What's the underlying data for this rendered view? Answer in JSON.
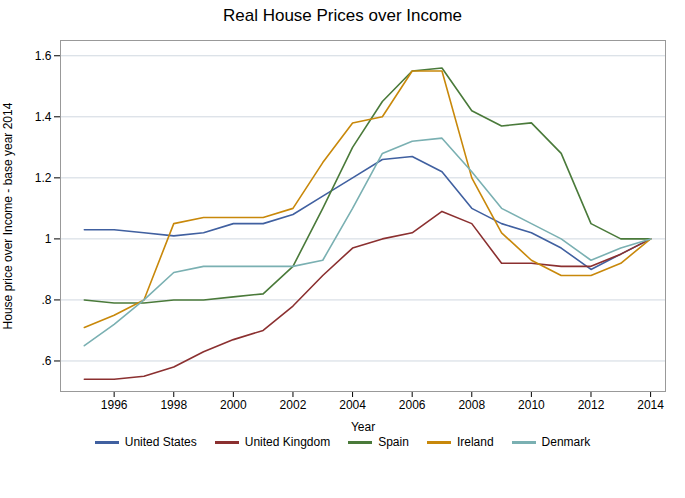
{
  "chart_data": {
    "type": "line",
    "title": "Real House Prices over Income",
    "xlabel": "Year",
    "ylabel": "House price over Income - base year 2014",
    "x": [
      1995,
      1996,
      1997,
      1998,
      1999,
      2000,
      2001,
      2002,
      2003,
      2004,
      2005,
      2006,
      2007,
      2008,
      2009,
      2010,
      2011,
      2012,
      2013,
      2014
    ],
    "series": [
      {
        "name": "United States",
        "color": "#4060a0",
        "values": [
          1.03,
          1.03,
          1.02,
          1.01,
          1.02,
          1.05,
          1.05,
          1.08,
          1.14,
          1.2,
          1.26,
          1.27,
          1.22,
          1.1,
          1.05,
          1.02,
          0.97,
          0.9,
          0.95,
          1.0
        ]
      },
      {
        "name": "United Kingdom",
        "color": "#8b3030",
        "values": [
          0.54,
          0.54,
          0.55,
          0.58,
          0.63,
          0.67,
          0.7,
          0.78,
          0.88,
          0.97,
          1.0,
          1.02,
          1.09,
          1.05,
          0.92,
          0.92,
          0.91,
          0.91,
          0.95,
          1.0
        ]
      },
      {
        "name": "Spain",
        "color": "#4a7a3a",
        "values": [
          0.8,
          0.79,
          0.79,
          0.8,
          0.8,
          0.81,
          0.82,
          0.91,
          1.1,
          1.3,
          1.45,
          1.55,
          1.56,
          1.42,
          1.37,
          1.38,
          1.28,
          1.05,
          1.0,
          1.0
        ]
      },
      {
        "name": "Ireland",
        "color": "#c8880a",
        "values": [
          0.71,
          0.75,
          0.8,
          1.05,
          1.07,
          1.07,
          1.07,
          1.1,
          1.25,
          1.38,
          1.4,
          1.55,
          1.55,
          1.2,
          1.02,
          0.93,
          0.88,
          0.88,
          0.92,
          1.0
        ]
      },
      {
        "name": "Denmark",
        "color": "#7ab0b2",
        "values": [
          0.65,
          0.72,
          0.8,
          0.89,
          0.91,
          0.91,
          0.91,
          0.91,
          0.93,
          1.1,
          1.28,
          1.32,
          1.33,
          1.22,
          1.1,
          1.05,
          1.0,
          0.93,
          0.97,
          1.0
        ]
      }
    ],
    "xlim": [
      1994.2,
      2014.5
    ],
    "xticks": [
      1996,
      1998,
      2000,
      2002,
      2004,
      2006,
      2008,
      2010,
      2012,
      2014
    ],
    "ylim": [
      0.5,
      1.65
    ],
    "yticks": [
      {
        "value": 0.6,
        "label": ".6"
      },
      {
        "value": 0.8,
        "label": ".8"
      },
      1,
      1.2,
      1.4,
      1.6
    ],
    "grid": "y",
    "legend": "bottom"
  }
}
